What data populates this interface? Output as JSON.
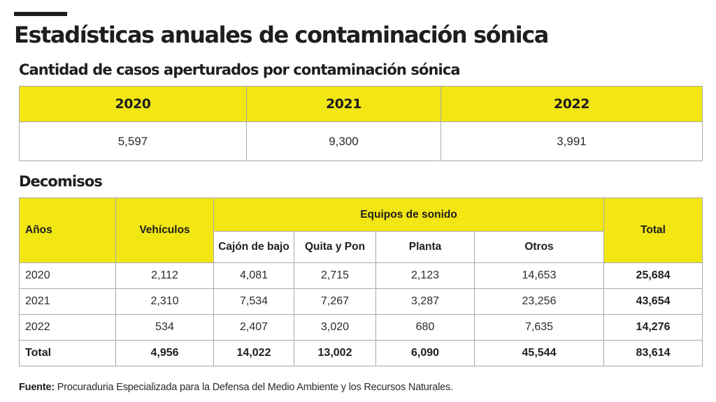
{
  "title": "Estadísticas anuales de contaminación sónica",
  "cases": {
    "heading": "Cantidad de casos aperturados por contaminación sónica",
    "years": [
      "2020",
      "2021",
      "2022"
    ],
    "values": [
      "5,597",
      "9,300",
      "3,991"
    ]
  },
  "seizures": {
    "heading": "Decomisos",
    "headers": {
      "years": "Años",
      "vehicles": "Vehículos",
      "sound_equipment": "Equipos de sonido",
      "total": "Total",
      "sub": [
        "Cajón de bajo",
        "Quita y Pon",
        "Planta",
        "Otros"
      ]
    },
    "rows": [
      {
        "year": "2020",
        "vehicles": "2,112",
        "cajon": "4,081",
        "quita": "2,715",
        "planta": "2,123",
        "otros": "14,653",
        "total": "25,684"
      },
      {
        "year": "2021",
        "vehicles": "2,310",
        "cajon": "7,534",
        "quita": "7,267",
        "planta": "3,287",
        "otros": "23,256",
        "total": "43,654"
      },
      {
        "year": "2022",
        "vehicles": "534",
        "cajon": "2,407",
        "quita": "3,020",
        "planta": "680",
        "otros": "7,635",
        "total": "14,276"
      }
    ],
    "totals": {
      "label": "Total",
      "vehicles": "4,956",
      "cajon": "14,022",
      "quita": "13,002",
      "planta": "6,090",
      "otros": "45,544",
      "total": "83,614"
    }
  },
  "source": {
    "label": "Fuente:",
    "text": " Procuraduria Especializada para la Defensa del Medio Ambiente y los Recursos Naturales."
  },
  "colors": {
    "header_yellow": "#f2e613",
    "text": "#1e1e1e",
    "border": "#a9a9a9"
  }
}
